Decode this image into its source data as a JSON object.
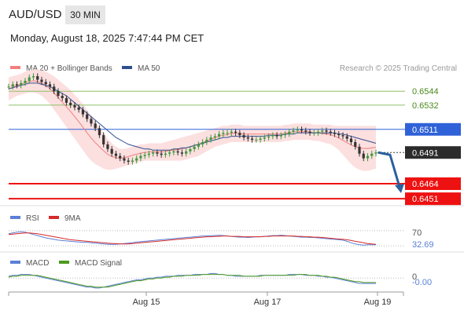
{
  "header": {
    "symbol": "AUD/USD",
    "timeframe": "30 MIN",
    "datetime": "Monday, August 18, 2025 7:47:44 PM CET"
  },
  "legend": {
    "ma20_label": "MA 20 + Bollinger Bands",
    "ma50_label": "MA 50",
    "credit": "Research © 2025 Trading Central"
  },
  "rsi_legend": {
    "rsi_label": "RSI",
    "ma_label": "9MA"
  },
  "macd_legend": {
    "macd_label": "MACD",
    "signal_label": "MACD Signal"
  },
  "colors": {
    "ma20": "#f08080",
    "bollinger_fill": "#fbd9d9",
    "ma50": "#2f4f8f",
    "level_line_green": "#8dc06a",
    "current_line_blue": "#2f62d8",
    "support_red": "#ee1111",
    "last_price_tag": "#2b2b2b",
    "arrow": "#2b5f9e",
    "rsi": "#5b7fd6",
    "rsi_ma": "#d62a2a",
    "macd": "#5b7fd6",
    "macd_signal": "#4e9a1f"
  },
  "chart_data": [
    {
      "type": "candlestick",
      "title": "AUD/USD 30 MIN",
      "x_ticks": [
        "Aug 15",
        "Aug 17",
        "Aug 19"
      ],
      "ylim": [
        0.6445,
        0.6555
      ],
      "price_levels": [
        {
          "value": 0.6544,
          "label": "0.6544",
          "style": "green-line"
        },
        {
          "value": 0.6532,
          "label": "0.6532",
          "style": "green-line"
        },
        {
          "value": 0.6511,
          "label": "0.6511",
          "style": "blue-tag"
        },
        {
          "value": 0.6491,
          "label": "0.6491",
          "style": "last-price"
        },
        {
          "value": 0.6464,
          "label": "0.6464",
          "style": "red-tag"
        },
        {
          "value": 0.6451,
          "label": "0.6451",
          "style": "red-tag"
        }
      ],
      "close_series": [
        0.6548,
        0.655,
        0.6549,
        0.6551,
        0.6553,
        0.6556,
        0.6557,
        0.6554,
        0.6552,
        0.655,
        0.6548,
        0.6544,
        0.654,
        0.6538,
        0.6534,
        0.6532,
        0.653,
        0.6528,
        0.6524,
        0.652,
        0.6516,
        0.6512,
        0.6506,
        0.6498,
        0.6494,
        0.649,
        0.6488,
        0.6486,
        0.6484,
        0.6483,
        0.6484,
        0.6486,
        0.6488,
        0.6489,
        0.649,
        0.6491,
        0.649,
        0.6489,
        0.649,
        0.6491,
        0.6492,
        0.6491,
        0.649,
        0.6492,
        0.6494,
        0.6496,
        0.6498,
        0.65,
        0.6502,
        0.6504,
        0.6505,
        0.6507,
        0.6508,
        0.6508,
        0.6509,
        0.6508,
        0.6506,
        0.6504,
        0.6503,
        0.6502,
        0.6502,
        0.6503,
        0.6504,
        0.6505,
        0.6506,
        0.6505,
        0.6506,
        0.6507,
        0.6509,
        0.651,
        0.6511,
        0.651,
        0.6509,
        0.6508,
        0.6508,
        0.6509,
        0.651,
        0.6509,
        0.6508,
        0.6507,
        0.6506,
        0.6505,
        0.6503,
        0.65,
        0.6496,
        0.649,
        0.6486,
        0.6488,
        0.649,
        0.6491
      ],
      "bollinger_upper": [
        0.6556,
        0.6557,
        0.6558,
        0.6559,
        0.6561,
        0.6562,
        0.6563,
        0.6563,
        0.6562,
        0.6561,
        0.6559,
        0.6557,
        0.6554,
        0.6551,
        0.6548,
        0.6545,
        0.6541,
        0.6537,
        0.6533,
        0.6528,
        0.6523,
        0.6518,
        0.6513,
        0.6508,
        0.6503,
        0.6499,
        0.6496,
        0.6494,
        0.6494,
        0.6495,
        0.6496,
        0.6497,
        0.6498,
        0.6498,
        0.6499,
        0.6499,
        0.6499,
        0.6499,
        0.65,
        0.6501,
        0.6502,
        0.6503,
        0.6504,
        0.6505,
        0.6506,
        0.6507,
        0.6508,
        0.6509,
        0.651,
        0.6511,
        0.6512,
        0.6513,
        0.6514,
        0.6514,
        0.6515,
        0.6515,
        0.6515,
        0.6514,
        0.6514,
        0.6514,
        0.6514,
        0.6514,
        0.6514,
        0.6514,
        0.6514,
        0.6514,
        0.6514,
        0.6515,
        0.6515,
        0.6516,
        0.6516,
        0.6516,
        0.6516,
        0.6516,
        0.6515,
        0.6515,
        0.6515,
        0.6515,
        0.6515,
        0.6514,
        0.6514,
        0.6514,
        0.6514,
        0.6514,
        0.6514,
        0.6514,
        0.6514,
        0.6514,
        0.6514,
        0.6514
      ],
      "bollinger_lower": [
        0.6536,
        0.6538,
        0.654,
        0.6541,
        0.6542,
        0.6543,
        0.6543,
        0.6542,
        0.654,
        0.6537,
        0.6533,
        0.6528,
        0.6523,
        0.6518,
        0.6513,
        0.6508,
        0.6503,
        0.6498,
        0.6493,
        0.6488,
        0.6484,
        0.6481,
        0.6479,
        0.6477,
        0.6476,
        0.6476,
        0.6477,
        0.6478,
        0.6479,
        0.648,
        0.6481,
        0.6482,
        0.6483,
        0.6484,
        0.6484,
        0.6484,
        0.6484,
        0.6484,
        0.6484,
        0.6484,
        0.6484,
        0.6484,
        0.6484,
        0.6485,
        0.6486,
        0.6487,
        0.6488,
        0.649,
        0.6492,
        0.6494,
        0.6496,
        0.6497,
        0.6498,
        0.6499,
        0.65,
        0.65,
        0.65,
        0.65,
        0.65,
        0.65,
        0.65,
        0.65,
        0.65,
        0.65,
        0.65,
        0.65,
        0.65,
        0.6501,
        0.6501,
        0.6502,
        0.6502,
        0.6502,
        0.6502,
        0.6502,
        0.6501,
        0.6501,
        0.65,
        0.6499,
        0.6498,
        0.6496,
        0.6493,
        0.6489,
        0.6485,
        0.6481,
        0.6478,
        0.6476,
        0.6475,
        0.6475,
        0.6476,
        0.6477
      ],
      "ma50_series": [
        0.6546,
        0.6547,
        0.6548,
        0.6549,
        0.655,
        0.6551,
        0.6551,
        0.6551,
        0.655,
        0.6549,
        0.6548,
        0.6546,
        0.6544,
        0.6542,
        0.654,
        0.6537,
        0.6534,
        0.6531,
        0.6528,
        0.6525,
        0.6522,
        0.6519,
        0.6516,
        0.6513,
        0.651,
        0.6507,
        0.6504,
        0.6502,
        0.65,
        0.6498,
        0.6497,
        0.6496,
        0.6495,
        0.6494,
        0.6494,
        0.6493,
        0.6493,
        0.6493,
        0.6493,
        0.6493,
        0.6494,
        0.6494,
        0.6495,
        0.6495,
        0.6496,
        0.6497,
        0.6498,
        0.6499,
        0.65,
        0.6501,
        0.6502,
        0.6503,
        0.6504,
        0.6504,
        0.6505,
        0.6505,
        0.6505,
        0.6505,
        0.6505,
        0.6505,
        0.6505,
        0.6505,
        0.6505,
        0.6506,
        0.6506,
        0.6506,
        0.6506,
        0.6507,
        0.6507,
        0.6507,
        0.6508,
        0.6508,
        0.6508,
        0.6508,
        0.6508,
        0.6508,
        0.6508,
        0.6508,
        0.6508,
        0.6508,
        0.6507,
        0.6507,
        0.6506,
        0.6505,
        0.6504,
        0.6503,
        0.6502,
        0.6501,
        0.65,
        0.6499
      ]
    },
    {
      "type": "line",
      "title": "RSI",
      "levels": [
        {
          "value": 70,
          "label": "70"
        }
      ],
      "last_value_label": "32.69",
      "ylim": [
        20,
        80
      ],
      "series": [
        {
          "name": "RSI",
          "values": [
            62,
            64,
            66,
            67,
            66,
            63,
            60,
            57,
            54,
            51,
            49,
            47,
            45,
            44,
            43,
            42,
            41,
            40,
            39,
            39,
            38,
            37,
            36,
            35,
            34,
            34,
            34,
            35,
            36,
            37,
            38,
            40,
            41,
            42,
            43,
            44,
            45,
            46,
            47,
            48,
            49,
            50,
            51,
            52,
            53,
            54,
            55,
            56,
            56,
            57,
            57,
            58,
            57,
            56,
            55,
            54,
            53,
            53,
            52,
            53,
            54,
            54,
            55,
            56,
            57,
            57,
            58,
            57,
            56,
            55,
            54,
            53,
            53,
            52,
            52,
            51,
            50,
            49,
            48,
            47,
            46,
            45,
            42,
            38,
            35,
            33,
            32,
            33,
            33,
            33
          ]
        },
        {
          "name": "9MA",
          "values": [
            60,
            61,
            62,
            63,
            64,
            64,
            63,
            62,
            60,
            58,
            56,
            54,
            52,
            50,
            48,
            46,
            45,
            44,
            43,
            42,
            41,
            40,
            39,
            38,
            37,
            36,
            36,
            35,
            35,
            35,
            36,
            37,
            38,
            39,
            40,
            41,
            42,
            43,
            44,
            45,
            46,
            47,
            48,
            49,
            50,
            51,
            52,
            53,
            54,
            54,
            55,
            55,
            56,
            56,
            55,
            55,
            55,
            54,
            54,
            54,
            54,
            54,
            55,
            55,
            56,
            56,
            56,
            56,
            56,
            56,
            55,
            55,
            54,
            54,
            53,
            53,
            52,
            51,
            50,
            49,
            48,
            47,
            46,
            44,
            42,
            40,
            38,
            36,
            35,
            34
          ]
        }
      ]
    },
    {
      "type": "line",
      "title": "MACD",
      "levels": [
        {
          "value": 0,
          "label": "0"
        }
      ],
      "last_value_label": "-0.00",
      "ylim": [
        -0.0012,
        0.0008
      ],
      "series": [
        {
          "name": "MACD",
          "values": [
            0.0002,
            0.0003,
            0.0003,
            0.0004,
            0.0004,
            0.0004,
            0.0003,
            0.0002,
            0.0001,
            0.0,
            -0.0001,
            -0.0002,
            -0.0003,
            -0.0004,
            -0.0005,
            -0.0006,
            -0.0007,
            -0.0008,
            -0.0009,
            -0.001,
            -0.001,
            -0.0011,
            -0.0011,
            -0.001,
            -0.0009,
            -0.0008,
            -0.0007,
            -0.0006,
            -0.0005,
            -0.0004,
            -0.0003,
            -0.0002,
            -0.0002,
            -0.0001,
            0.0,
            0.0,
            0.0001,
            0.0001,
            0.0002,
            0.0002,
            0.0002,
            0.0003,
            0.0003,
            0.0003,
            0.0003,
            0.0004,
            0.0004,
            0.0004,
            0.0004,
            0.0005,
            0.0005,
            0.0004,
            0.0004,
            0.0003,
            0.0003,
            0.0002,
            0.0002,
            0.0002,
            0.0002,
            0.0002,
            0.0002,
            0.0003,
            0.0003,
            0.0003,
            0.0003,
            0.0003,
            0.0003,
            0.0003,
            0.0004,
            0.0004,
            0.0004,
            0.0004,
            0.0003,
            0.0003,
            0.0003,
            0.0002,
            0.0002,
            0.0001,
            0.0001,
            0.0,
            -0.0001,
            -0.0002,
            -0.0003,
            -0.0004,
            -0.0005,
            -0.0006,
            -0.0006,
            -0.0006,
            -0.0006,
            -0.0006
          ]
        },
        {
          "name": "MACD Signal",
          "values": [
            0.0001,
            0.0002,
            0.0002,
            0.0003,
            0.0003,
            0.0003,
            0.0003,
            0.0003,
            0.0002,
            0.0001,
            0.0,
            -0.0001,
            -0.0002,
            -0.0003,
            -0.0004,
            -0.0005,
            -0.0006,
            -0.0007,
            -0.0008,
            -0.0009,
            -0.0009,
            -0.001,
            -0.001,
            -0.001,
            -0.001,
            -0.0009,
            -0.0008,
            -0.0007,
            -0.0006,
            -0.0005,
            -0.0004,
            -0.0003,
            -0.0003,
            -0.0002,
            -0.0001,
            -0.0001,
            0.0,
            0.0,
            0.0001,
            0.0001,
            0.0002,
            0.0002,
            0.0002,
            0.0003,
            0.0003,
            0.0003,
            0.0003,
            0.0004,
            0.0004,
            0.0004,
            0.0004,
            0.0004,
            0.0004,
            0.0003,
            0.0003,
            0.0003,
            0.0003,
            0.0002,
            0.0002,
            0.0002,
            0.0002,
            0.0002,
            0.0003,
            0.0003,
            0.0003,
            0.0003,
            0.0003,
            0.0003,
            0.0003,
            0.0003,
            0.0004,
            0.0004,
            0.0004,
            0.0003,
            0.0003,
            0.0003,
            0.0002,
            0.0002,
            0.0001,
            0.0001,
            0.0,
            -0.0001,
            -0.0002,
            -0.0003,
            -0.0004,
            -0.0004,
            -0.0005,
            -0.0005,
            -0.0005,
            -0.0005
          ]
        }
      ]
    }
  ]
}
